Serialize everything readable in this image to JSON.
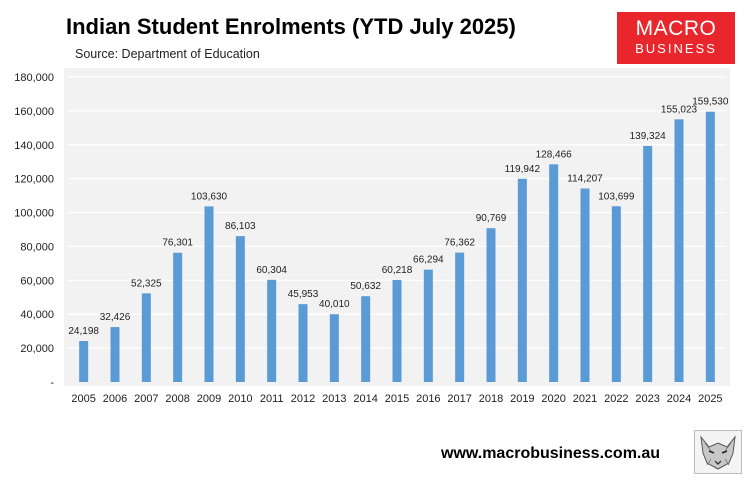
{
  "header": {
    "title": "Indian Student Enrolments (YTD  July 2025)",
    "source": "Source: Department of Education"
  },
  "logo": {
    "line1": "MACRO",
    "line2": "BUSINESS",
    "color": "#e8262b"
  },
  "footer": {
    "website": "www.macrobusiness.com.au"
  },
  "colors": {
    "bar": "#5b9bd5",
    "plot_bg": "#f2f2f2",
    "grid": "#ffffff"
  },
  "chart_data": {
    "type": "bar",
    "title": "Indian Student Enrolments (YTD  July 2025)",
    "subtitle": "Source: Department of Education",
    "xlabel": "",
    "ylabel": "",
    "categories": [
      "2005",
      "2006",
      "2007",
      "2008",
      "2009",
      "2010",
      "2011",
      "2012",
      "2013",
      "2014",
      "2015",
      "2016",
      "2017",
      "2018",
      "2019",
      "2020",
      "2021",
      "2022",
      "2023",
      "2024",
      "2025"
    ],
    "values": [
      24198,
      32426,
      52325,
      76301,
      103630,
      86103,
      60304,
      45953,
      40010,
      50632,
      60218,
      66294,
      76362,
      90769,
      119942,
      128466,
      114207,
      103699,
      139324,
      155023,
      159530
    ],
    "value_labels": [
      "24,198",
      "32,426",
      "52,325",
      "76,301",
      "103,630",
      "86,103",
      "60,304",
      "45,953",
      "40,010",
      "50,632",
      "60,218",
      "66,294",
      "76,362",
      "90,769",
      "119,942",
      "128,466",
      "114,207",
      "103,699",
      "139,324",
      "155,023",
      "159,530"
    ],
    "ylim": [
      0,
      180000
    ],
    "yticks": [
      0,
      20000,
      40000,
      60000,
      80000,
      100000,
      120000,
      140000,
      160000,
      180000
    ],
    "ytick_labels": [
      "-",
      "20,000",
      "40,000",
      "60,000",
      "80,000",
      "100,000",
      "120,000",
      "140,000",
      "160,000",
      "180,000"
    ],
    "grid": true,
    "legend": "none"
  }
}
